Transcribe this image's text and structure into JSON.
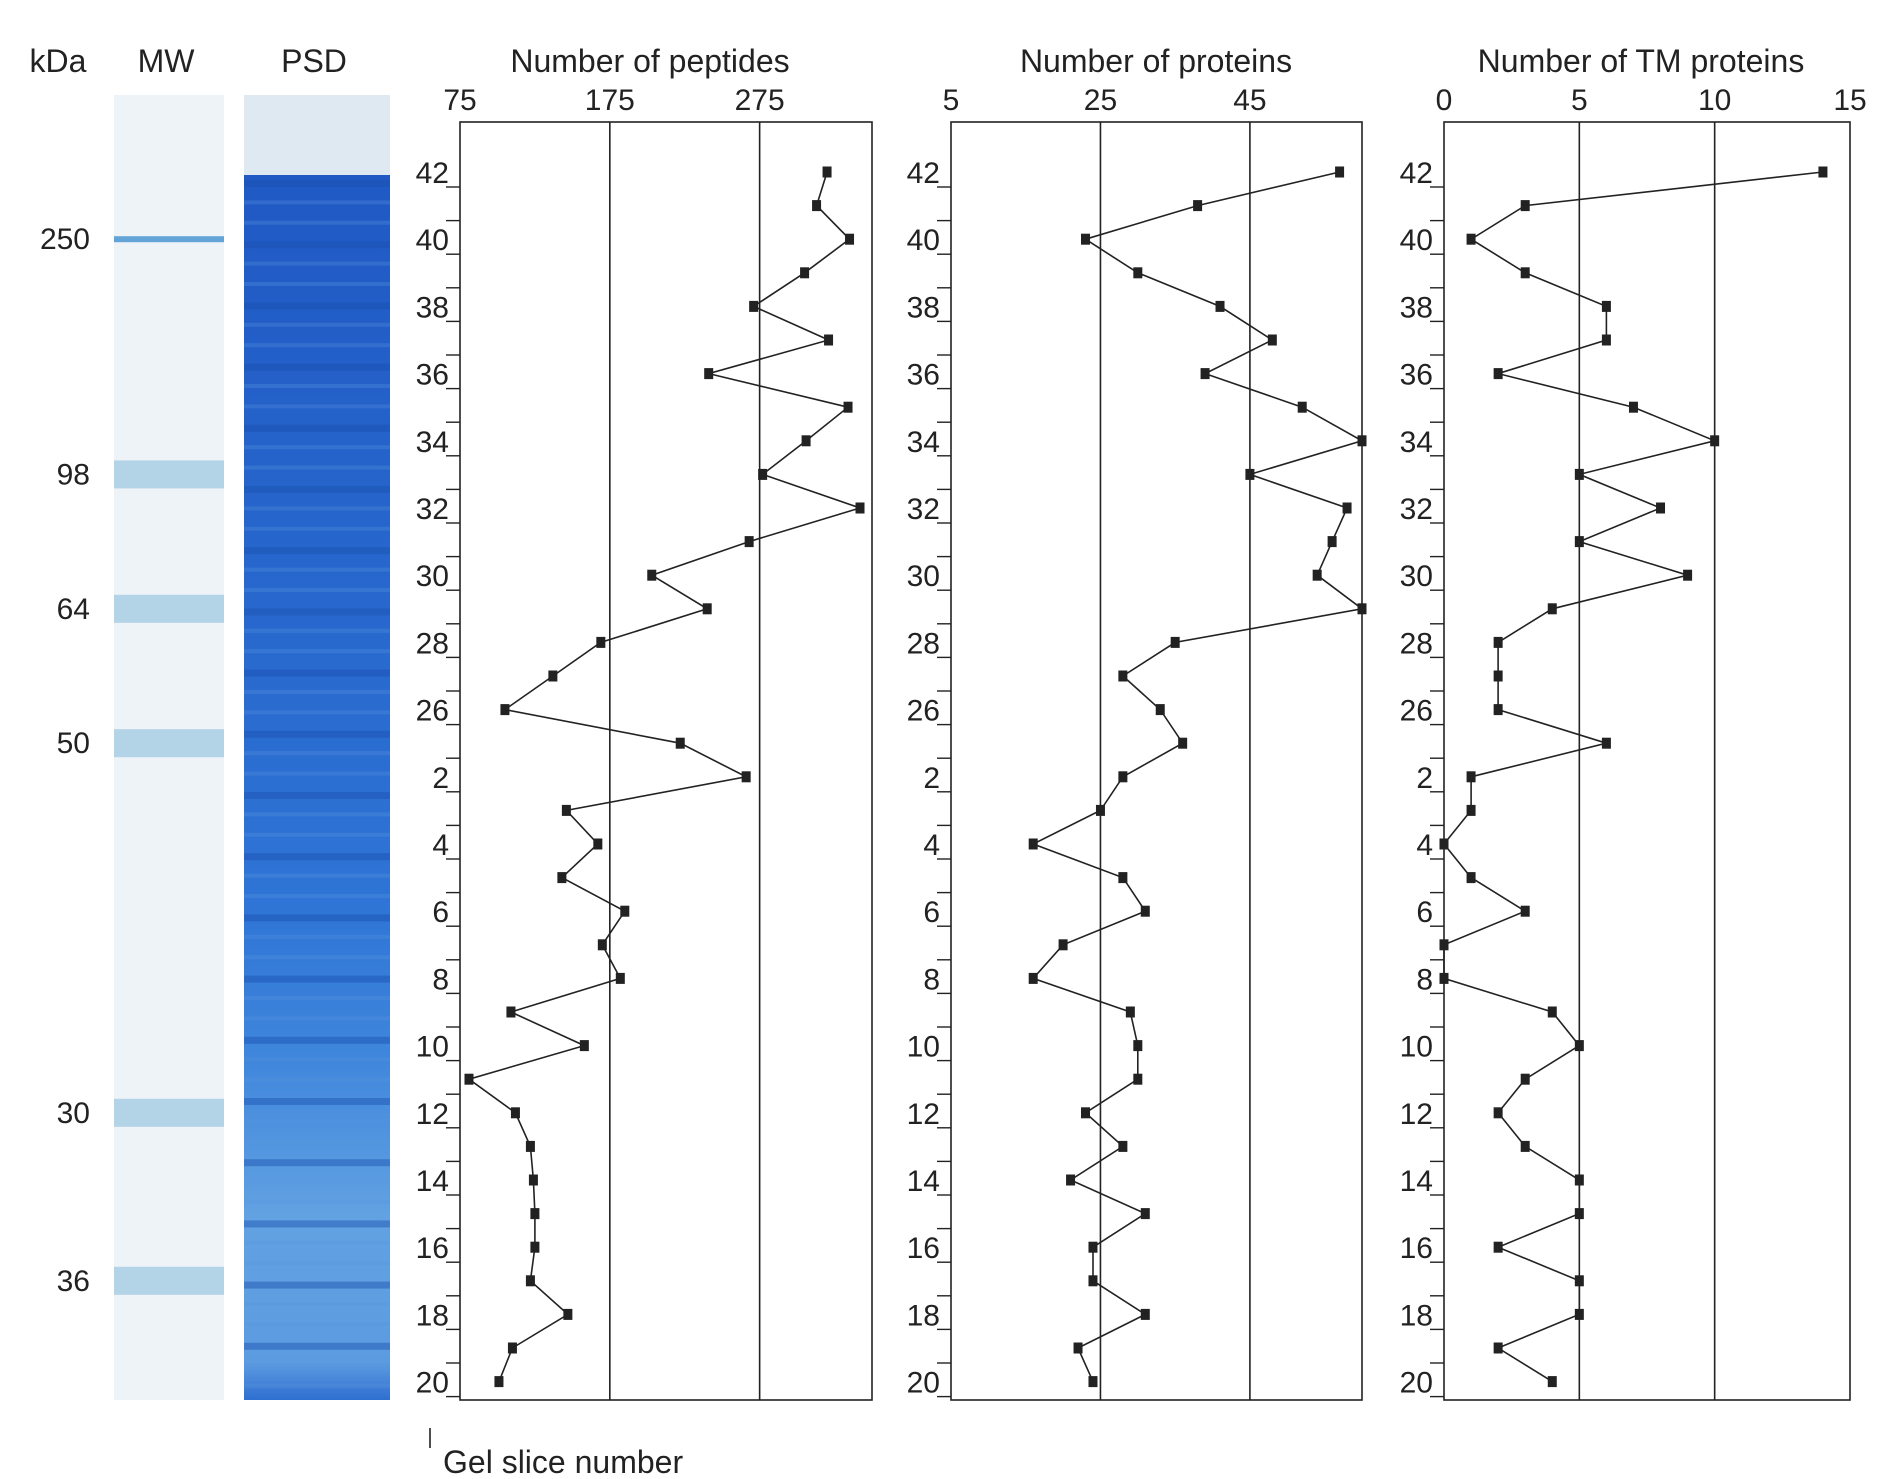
{
  "gel": {
    "kda_label": "kDa",
    "mw_label": "MW",
    "psd_label": "PSD",
    "markers": [
      {
        "kda": "250",
        "slice_pos": 40.3
      },
      {
        "kda": "98",
        "slice_pos": 33.4
      },
      {
        "kda": "64",
        "slice_pos": 29.0
      },
      {
        "kda": "50",
        "slice_pos": 24.5
      },
      {
        "kda": "36",
        "slice_pos": 17.4
      },
      {
        "kda": "30",
        "slice_pos": 11.6
      }
    ],
    "colors": {
      "mw_band": "#a8cce4",
      "psd_dark": "#1f5cc0",
      "psd_light": "#8fbde6"
    }
  },
  "slice_axis": {
    "caption": "Gel slice number",
    "slices_top_to_bottom": [
      "42",
      "41",
      "40",
      "39",
      "38",
      "37",
      "36",
      "35",
      "34",
      "33",
      "32",
      "31",
      "30",
      "29",
      "28",
      "27",
      "26",
      "25",
      "2",
      "3",
      "4",
      "5",
      "6",
      "7",
      "8",
      "9",
      "10",
      "11",
      "12",
      "13",
      "14",
      "15",
      "16",
      "17",
      "18",
      "19",
      "20"
    ],
    "labeled": [
      "42",
      "40",
      "38",
      "36",
      "34",
      "32",
      "30",
      "28",
      "26",
      "2",
      "4",
      "6",
      "8",
      "10",
      "12",
      "14",
      "16",
      "18",
      "20"
    ]
  },
  "chart_data": [
    {
      "type": "line",
      "title": "Number of peptides",
      "xlim": [
        75,
        350
      ],
      "x_ticks": [
        "75",
        "175",
        "275"
      ],
      "gridlines": [
        175,
        275
      ],
      "orientation": "vertical",
      "values": [
        320,
        313,
        335,
        305,
        271,
        321,
        241,
        334,
        306,
        277,
        342,
        268,
        203,
        240,
        169,
        137,
        105,
        222,
        266,
        146,
        167,
        143,
        185,
        170,
        182,
        109,
        158,
        81,
        112,
        122,
        124,
        125,
        125,
        122,
        147,
        110,
        101
      ]
    },
    {
      "type": "line",
      "title": "Number of proteins",
      "xlim": [
        5,
        60
      ],
      "x_ticks": [
        "5",
        "25",
        "45"
      ],
      "gridlines": [
        25,
        45
      ],
      "orientation": "vertical",
      "values": [
        57,
        38,
        23,
        30,
        41,
        48,
        39,
        52,
        60,
        45,
        58,
        56,
        54,
        60,
        35,
        28,
        33,
        36,
        28,
        25,
        16,
        28,
        31,
        20,
        16,
        29,
        30,
        30,
        23,
        28,
        21,
        31,
        24,
        24,
        31,
        22,
        24
      ]
    },
    {
      "type": "line",
      "title": "Number of TM proteins",
      "xlim": [
        0,
        15
      ],
      "x_ticks": [
        "0",
        "5",
        "10",
        "15"
      ],
      "gridlines": [
        5,
        10
      ],
      "orientation": "vertical",
      "values": [
        14,
        3,
        1,
        3,
        6,
        6,
        2,
        7,
        10,
        5,
        8,
        5,
        9,
        4,
        2,
        2,
        2,
        6,
        1,
        1,
        0,
        1,
        3,
        0,
        0,
        4,
        5,
        3,
        2,
        3,
        5,
        5,
        2,
        5,
        5,
        2,
        4
      ]
    }
  ]
}
